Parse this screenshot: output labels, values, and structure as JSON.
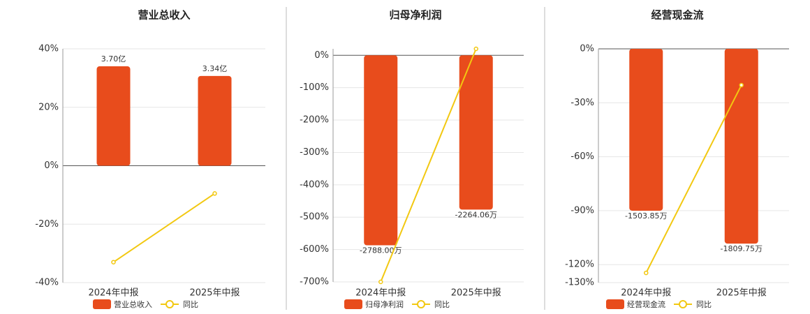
{
  "chart_data": [
    {
      "type": "bar",
      "title": "营业总收入",
      "categories": [
        "2024年中报",
        "2025年中报"
      ],
      "series": [
        {
          "name": "营业总收入",
          "color": "#e84c1c",
          "values": [
            3.7,
            3.34
          ],
          "value_labels": [
            "3.70亿",
            "3.34亿"
          ],
          "axis": "y2"
        },
        {
          "name": "同比",
          "type": "line",
          "color": "#f2c811",
          "values": [
            -33,
            -9.5
          ]
        }
      ],
      "ylim": [
        -40,
        40
      ],
      "yticks": [
        {
          "value": 40,
          "label": "40%"
        },
        {
          "value": 20,
          "label": "20%"
        },
        {
          "value": 0,
          "label": "0%"
        },
        {
          "value": -20,
          "label": "-20%"
        },
        {
          "value": -40,
          "label": "-40%"
        }
      ],
      "y2lim": [
        -4.35,
        4.35
      ],
      "grid": true
    },
    {
      "type": "bar",
      "title": "归母净利润",
      "categories": [
        "2024年中报",
        "2025年中报"
      ],
      "series": [
        {
          "name": "归母净利润",
          "color": "#e84c1c",
          "values": [
            -2788.0,
            -2264.06
          ],
          "value_labels": [
            "-2788.00万",
            "-2264.06万"
          ],
          "axis": "y2"
        },
        {
          "name": "同比",
          "type": "line",
          "color": "#f2c811",
          "values": [
            -700,
            20
          ]
        }
      ],
      "ylim": [
        -700,
        20
      ],
      "yticks": [
        {
          "value": 0,
          "label": "0%"
        },
        {
          "value": -100,
          "label": "-100%"
        },
        {
          "value": -200,
          "label": "-200%"
        },
        {
          "value": -300,
          "label": "-300%"
        },
        {
          "value": -400,
          "label": "-400%"
        },
        {
          "value": -500,
          "label": "-500%"
        },
        {
          "value": -600,
          "label": "-600%"
        },
        {
          "value": -700,
          "label": "-700%"
        }
      ],
      "y2lim": [
        -3325,
        95
      ],
      "grid": true
    },
    {
      "type": "bar",
      "title": "经营现金流",
      "categories": [
        "2024年中报",
        "2025年中报"
      ],
      "series": [
        {
          "name": "经营现金流",
          "color": "#e84c1c",
          "values": [
            -1503.85,
            -1809.75
          ],
          "value_labels": [
            "-1503.85万",
            "-1809.75万"
          ],
          "axis": "y2"
        },
        {
          "name": "同比",
          "type": "line",
          "color": "#f2c811",
          "values": [
            -124.6,
            -20.2
          ]
        }
      ],
      "ylim": [
        -130,
        0
      ],
      "yticks": [
        {
          "value": 0,
          "label": "0%"
        },
        {
          "value": -30,
          "label": "-30%"
        },
        {
          "value": -60,
          "label": "-60%"
        },
        {
          "value": -90,
          "label": "-90%"
        },
        {
          "value": -120,
          "label": "-120%"
        },
        {
          "value": -130,
          "label": "-130%"
        }
      ],
      "y2lim": [
        -2172,
        0
      ],
      "grid": true
    }
  ]
}
